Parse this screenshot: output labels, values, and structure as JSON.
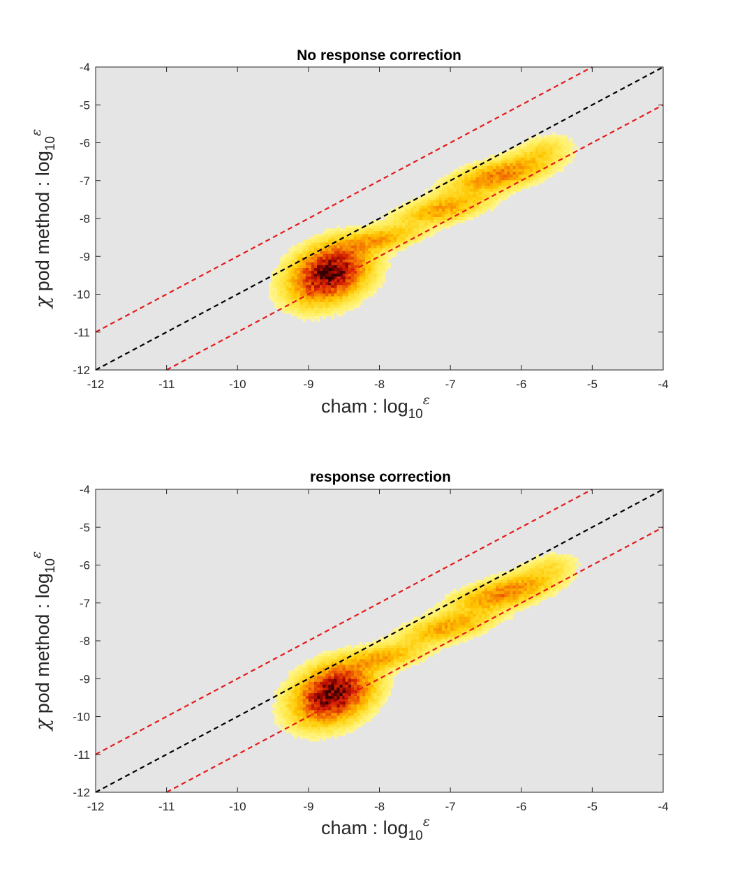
{
  "chart_data": [
    {
      "type": "heatmap",
      "title": "No response correction",
      "xlabel": {
        "main": "cham : log",
        "sub": "10",
        "sup": "ε"
      },
      "ylabel": {
        "greek": "χ",
        "main": " pod method : log",
        "sub": "10",
        "sup": "ε"
      },
      "xlim": [
        -12,
        -4
      ],
      "ylim": [
        -12,
        -4
      ],
      "xticks": [
        "-12",
        "-11",
        "-10",
        "-9",
        "-8",
        "-7",
        "-6",
        "-5",
        "-4"
      ],
      "yticks": [
        "-4",
        "-5",
        "-6",
        "-7",
        "-8",
        "-9",
        "-10",
        "-11",
        "-12"
      ],
      "xtick_values": [
        -12,
        -11,
        -10,
        -9,
        -8,
        -7,
        -6,
        -5,
        -4
      ],
      "ytick_values": [
        -4,
        -5,
        -6,
        -7,
        -8,
        -9,
        -10,
        -11,
        -12
      ],
      "background": "#e5e5e5",
      "reference_lines": [
        {
          "offset": 1,
          "color": "#e41a1c",
          "style": "dashed"
        },
        {
          "offset": 0,
          "color": "#000000",
          "style": "dashed"
        },
        {
          "offset": -1,
          "color": "#e41a1c",
          "style": "dashed"
        }
      ],
      "density_blobs": [
        {
          "x": -8.7,
          "y": -9.45,
          "sx": 0.33,
          "sy": 0.47,
          "rho": 0.3,
          "w": 1.0
        },
        {
          "x": -8.0,
          "y": -8.55,
          "sx": 0.35,
          "sy": 0.22,
          "rho": 0.5,
          "w": 0.32
        },
        {
          "x": -7.1,
          "y": -7.75,
          "sx": 0.4,
          "sy": 0.28,
          "rho": 0.6,
          "w": 0.35
        },
        {
          "x": -6.3,
          "y": -6.85,
          "sx": 0.42,
          "sy": 0.3,
          "rho": 0.6,
          "w": 0.45
        },
        {
          "x": -5.7,
          "y": -6.2,
          "sx": 0.25,
          "sy": 0.25,
          "rho": 0.4,
          "w": 0.15
        }
      ]
    },
    {
      "type": "heatmap",
      "title": "response correction",
      "xlabel": {
        "main": "cham : log",
        "sub": "10",
        "sup": "ε"
      },
      "ylabel": {
        "greek": "χ",
        "main": " pod method : log",
        "sub": "10",
        "sup": "ε"
      },
      "xlim": [
        -12,
        -4
      ],
      "ylim": [
        -12,
        -4
      ],
      "xticks": [
        "-12",
        "-11",
        "-10",
        "-9",
        "-8",
        "-7",
        "-6",
        "-5",
        "-4"
      ],
      "yticks": [
        "-4",
        "-5",
        "-6",
        "-7",
        "-8",
        "-9",
        "-10",
        "-11",
        "-12"
      ],
      "xtick_values": [
        -12,
        -11,
        -10,
        -9,
        -8,
        -7,
        -6,
        -5,
        -4
      ],
      "ytick_values": [
        -4,
        -5,
        -6,
        -7,
        -8,
        -9,
        -10,
        -11,
        -12
      ],
      "background": "#e5e5e5",
      "reference_lines": [
        {
          "offset": 1,
          "color": "#e41a1c",
          "style": "dashed"
        },
        {
          "offset": 0,
          "color": "#000000",
          "style": "dashed"
        },
        {
          "offset": -1,
          "color": "#e41a1c",
          "style": "dashed"
        }
      ],
      "density_blobs": [
        {
          "x": -8.65,
          "y": -9.4,
          "sx": 0.33,
          "sy": 0.47,
          "rho": 0.3,
          "w": 1.0
        },
        {
          "x": -7.95,
          "y": -8.45,
          "sx": 0.35,
          "sy": 0.22,
          "rho": 0.5,
          "w": 0.32
        },
        {
          "x": -7.05,
          "y": -7.65,
          "sx": 0.4,
          "sy": 0.28,
          "rho": 0.6,
          "w": 0.35
        },
        {
          "x": -6.25,
          "y": -6.75,
          "sx": 0.42,
          "sy": 0.3,
          "rho": 0.6,
          "w": 0.45
        },
        {
          "x": -5.65,
          "y": -6.1,
          "sx": 0.25,
          "sy": 0.25,
          "rho": 0.4,
          "w": 0.15
        }
      ]
    }
  ]
}
